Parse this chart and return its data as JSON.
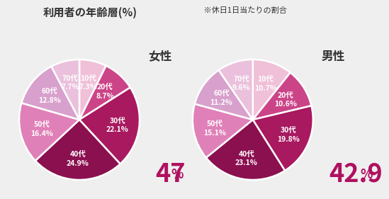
{
  "title_main": "利用者の年齢層(%)",
  "title_sub": " ※休日1日当たりの割合",
  "female_label": "女性",
  "male_label": "男性",
  "female_highlight_big": "47",
  "female_highlight_small": "%",
  "male_highlight_big": "42.9",
  "male_highlight_small": "%",
  "female_data": {
    "labels": [
      "10代",
      "20代",
      "30代",
      "40代",
      "50代",
      "60代",
      "70代"
    ],
    "values": [
      7.3,
      8.7,
      22.1,
      24.9,
      16.4,
      12.8,
      7.7
    ],
    "colors": [
      "#f0c0d8",
      "#cc4488",
      "#a8195f",
      "#8b1050",
      "#e080b8",
      "#d8a0cc",
      "#eac0dc"
    ]
  },
  "male_data": {
    "labels": [
      "10代",
      "20代",
      "30代",
      "40代",
      "50代",
      "60代",
      "70代"
    ],
    "values": [
      10.7,
      10.6,
      19.8,
      23.1,
      15.1,
      11.2,
      9.6
    ],
    "colors": [
      "#f0c0d8",
      "#cc4488",
      "#a8195f",
      "#8b1050",
      "#e080b8",
      "#d8a0cc",
      "#eac0dc"
    ]
  },
  "bg_color": "#efefef",
  "highlight_color": "#b01060",
  "text_color_dark": "#333333",
  "text_color_white": "#ffffff",
  "label_fontsize": 7.5,
  "title_fontsize": 11,
  "subtitle_fontsize": 8,
  "gender_fontsize": 12,
  "highlight_fontsize_big": 26,
  "highlight_fontsize_small": 13
}
